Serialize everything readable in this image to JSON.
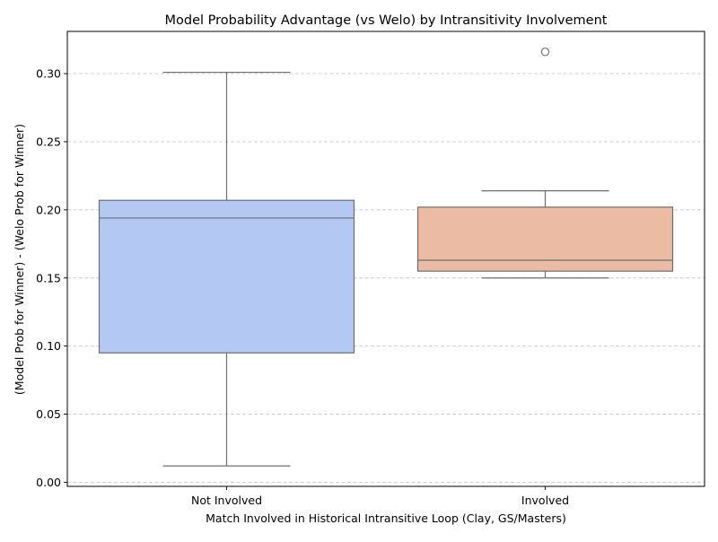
{
  "chart_data": {
    "type": "box",
    "title": "Model Probability Advantage (vs Welo) by Intransitivity Involvement",
    "xlabel": "Match Involved in Historical Intransitive Loop (Clay, GS/Masters)",
    "ylabel": "(Model Prob for Winner) - (Welo Prob for Winner)",
    "ylim": [
      -0.003,
      0.331
    ],
    "yticks": [
      0.0,
      0.05,
      0.1,
      0.15,
      0.2,
      0.25,
      0.3
    ],
    "ytick_labels": [
      "0.00",
      "0.05",
      "0.10",
      "0.15",
      "0.20",
      "0.25",
      "0.30"
    ],
    "grid": "y-dashed",
    "categories": [
      "Not Involved",
      "Involved"
    ],
    "boxes": [
      {
        "category": "Not Involved",
        "whisker_low": 0.012,
        "q1": 0.095,
        "median": 0.194,
        "q3": 0.207,
        "whisker_high": 0.301,
        "outliers": [],
        "color": "#b4c8f4"
      },
      {
        "category": "Involved",
        "whisker_low": 0.15,
        "q1": 0.155,
        "median": 0.163,
        "q3": 0.202,
        "whisker_high": 0.214,
        "outliers": [
          0.316
        ],
        "color": "#ecbba4"
      }
    ],
    "line_color": "#6e6e6e",
    "grid_color": "#c8c8c8"
  }
}
